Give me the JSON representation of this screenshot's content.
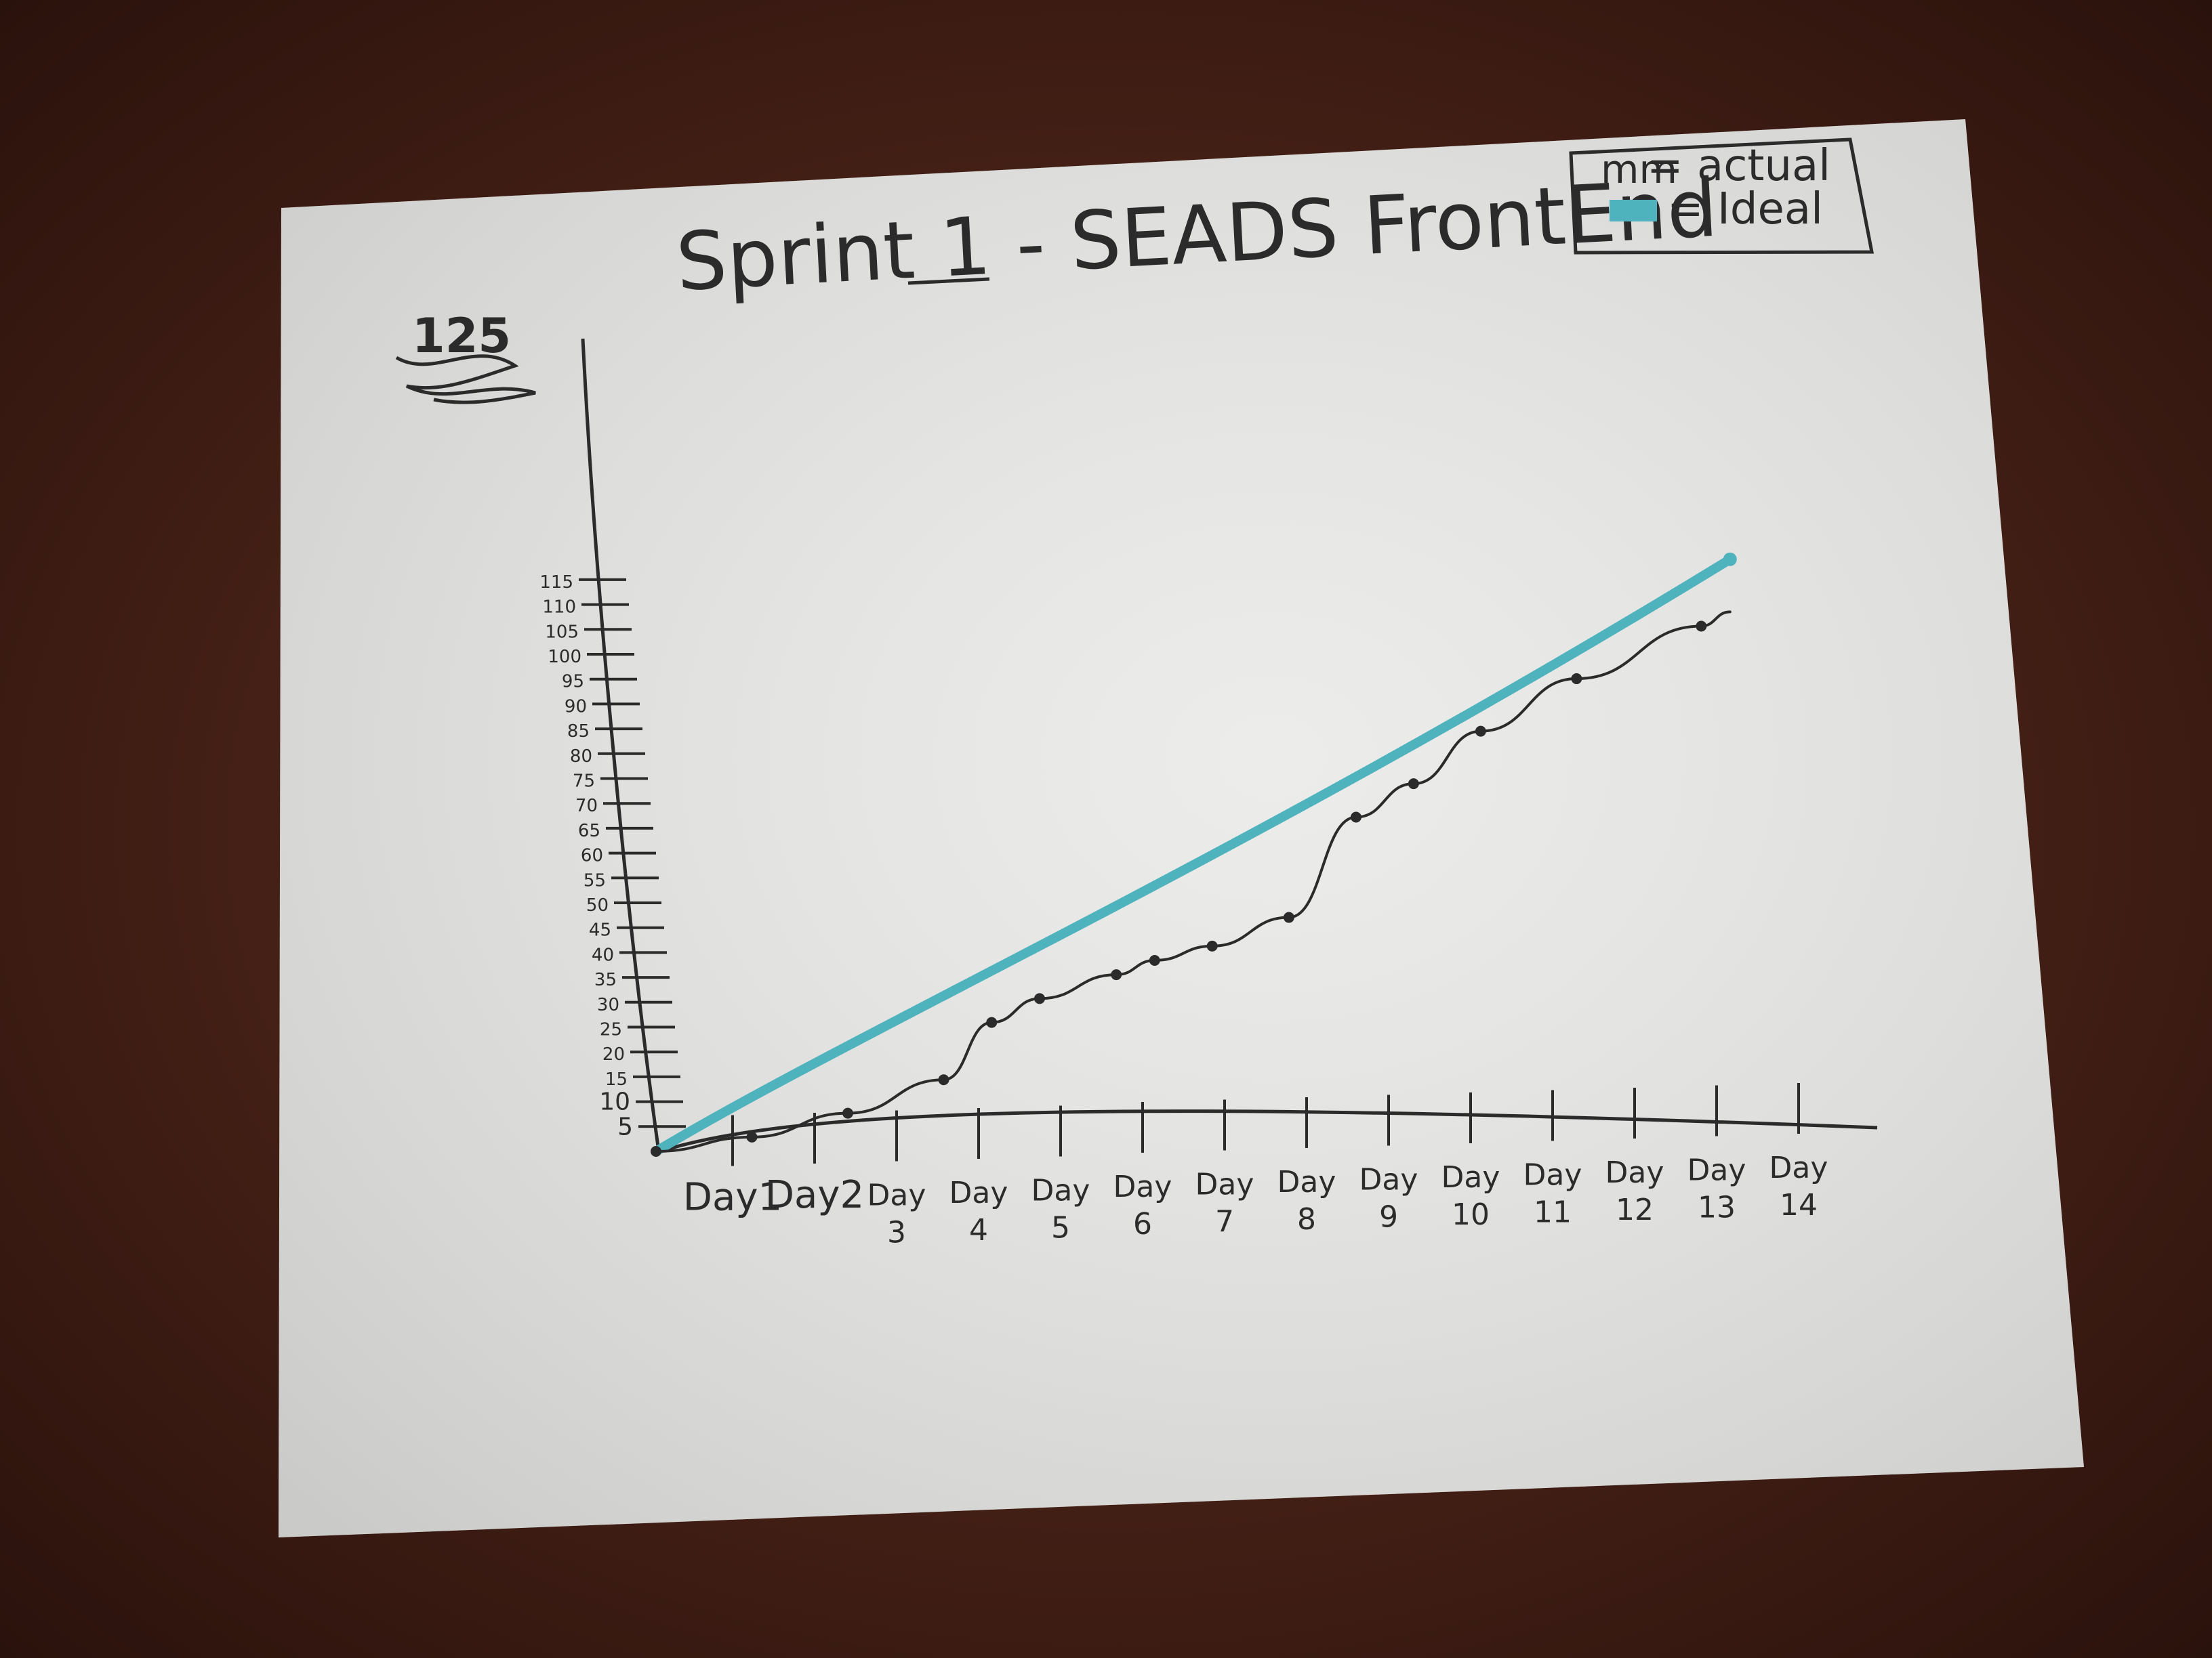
{
  "colors": {
    "paper": "#e8e8e6",
    "ink": "#2b2b2b",
    "ideal": "#4fb3be"
  },
  "chart_data": {
    "type": "line",
    "title": "Sprint 1 - SEADS FrontEnd",
    "legend": {
      "placement": "top-right",
      "entries": [
        {
          "swatch": "mm",
          "label": "= actual",
          "color": "#2b2b2b"
        },
        {
          "swatch": "",
          "label": "= Ideal",
          "color": "#4fb3be"
        }
      ]
    },
    "y_top_label": "125",
    "y_ticks": [
      {
        "value": 5,
        "label": "5"
      },
      {
        "value": 10,
        "label": "10"
      },
      {
        "value": 15,
        "label": "15"
      },
      {
        "value": 20,
        "label": "20"
      },
      {
        "value": 25,
        "label": "25"
      },
      {
        "value": 30,
        "label": "30"
      },
      {
        "value": 35,
        "label": "35"
      },
      {
        "value": 40,
        "label": "40"
      },
      {
        "value": 45,
        "label": "45"
      },
      {
        "value": 50,
        "label": "50"
      },
      {
        "value": 55,
        "label": "55"
      },
      {
        "value": 60,
        "label": "60"
      },
      {
        "value": 65,
        "label": "65"
      },
      {
        "value": 70,
        "label": "70"
      },
      {
        "value": 75,
        "label": "75"
      },
      {
        "value": 80,
        "label": "80"
      },
      {
        "value": 85,
        "label": "85"
      },
      {
        "value": 90,
        "label": "90"
      },
      {
        "value": 95,
        "label": "95"
      },
      {
        "value": 100,
        "label": "100"
      },
      {
        "value": 105,
        "label": "105"
      },
      {
        "value": 110,
        "label": "110"
      },
      {
        "value": 115,
        "label": "115"
      }
    ],
    "x_ticks": [
      {
        "day": 1,
        "line1": "Day1",
        "line2": ""
      },
      {
        "day": 2,
        "line1": "Day2",
        "line2": ""
      },
      {
        "day": 3,
        "line1": "Day",
        "line2": "3"
      },
      {
        "day": 4,
        "line1": "Day",
        "line2": "4"
      },
      {
        "day": 5,
        "line1": "Day",
        "line2": "5"
      },
      {
        "day": 6,
        "line1": "Day",
        "line2": "6"
      },
      {
        "day": 7,
        "line1": "Day",
        "line2": "7"
      },
      {
        "day": 8,
        "line1": "Day",
        "line2": "8"
      },
      {
        "day": 9,
        "line1": "Day",
        "line2": "9"
      },
      {
        "day": 10,
        "line1": "Day",
        "line2": "10"
      },
      {
        "day": 11,
        "line1": "Day",
        "line2": "11"
      },
      {
        "day": 12,
        "line1": "Day",
        "line2": "12"
      },
      {
        "day": 13,
        "line1": "Day",
        "line2": "13"
      },
      {
        "day": 14,
        "line1": "Day",
        "line2": "14"
      }
    ],
    "xlim": [
      0,
      14
    ],
    "ylim": [
      0,
      125
    ],
    "grid": false,
    "series": [
      {
        "name": "actual",
        "color": "#2b2b2b",
        "points": [
          {
            "x": 0,
            "y": 0
          },
          {
            "x": 1,
            "y": 3
          },
          {
            "x": 2,
            "y": 8
          },
          {
            "x": 3,
            "y": 15
          },
          {
            "x": 3.5,
            "y": 27
          },
          {
            "x": 4,
            "y": 32
          },
          {
            "x": 4.8,
            "y": 37
          },
          {
            "x": 5.2,
            "y": 40
          },
          {
            "x": 5.8,
            "y": 43
          },
          {
            "x": 6.6,
            "y": 49
          },
          {
            "x": 7.3,
            "y": 70
          },
          {
            "x": 7.9,
            "y": 77
          },
          {
            "x": 8.6,
            "y": 88
          },
          {
            "x": 9.6,
            "y": 99
          },
          {
            "x": 10.9,
            "y": 110
          }
        ],
        "line_end": {
          "x": 11.2,
          "y": 113
        }
      },
      {
        "name": "Ideal",
        "color": "#4fb3be",
        "points": [
          {
            "x": 0,
            "y": 0
          },
          {
            "x": 11.2,
            "y": 124
          }
        ]
      }
    ]
  }
}
